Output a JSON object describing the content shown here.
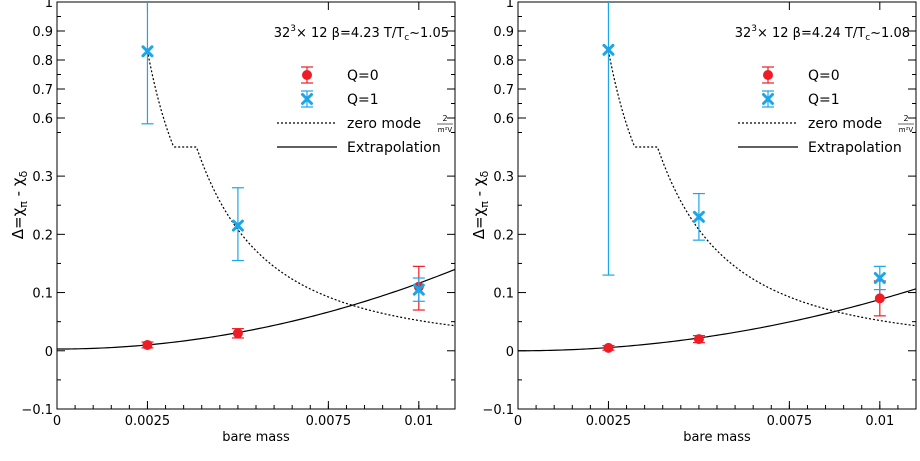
{
  "colors": {
    "q0": "#ee1c24",
    "q1": "#1aa6e8",
    "axis": "#000000"
  },
  "chart_data": [
    {
      "type": "scatter",
      "annotation": {
        "base": "32",
        "sup": "3",
        "rest": "× 12 β=4.23 T/T",
        "sub": "c",
        "tail": "~1.05"
      },
      "xlabel": "bare mass",
      "ylabel": "Δ=χπ - χδ",
      "ylabel_parts": {
        "pre": "Δ=χ",
        "sub1": "π",
        "mid": " - χ",
        "sub2": "δ"
      },
      "xlim": [
        0,
        0.011
      ],
      "ylim": [
        -0.1,
        1.0
      ],
      "y_break": {
        "lower": [
          -0.1,
          0.35
        ],
        "upper": [
          0.5,
          1.0
        ]
      },
      "x_ticks": [
        {
          "value": 0,
          "label": "0"
        },
        {
          "value": 0.0025,
          "label": "0.0025"
        },
        {
          "value": 0.0075,
          "label": "0.0075"
        },
        {
          "value": 0.01,
          "label": "0.01"
        }
      ],
      "y_ticks": [
        {
          "value": -0.1,
          "label": "−0.1"
        },
        {
          "value": 0,
          "label": "0"
        },
        {
          "value": 0.1,
          "label": "0.1"
        },
        {
          "value": 0.2,
          "label": "0.2"
        },
        {
          "value": 0.3,
          "label": "0.3"
        },
        {
          "value": 0.6,
          "label": "0.6"
        },
        {
          "value": 0.7,
          "label": "0.7"
        },
        {
          "value": 0.8,
          "label": "0.8"
        },
        {
          "value": 0.9,
          "label": "0.9"
        },
        {
          "value": 1.0,
          "label": "1"
        }
      ],
      "legend": {
        "position": "top-right",
        "entries": [
          {
            "label": "Q=0",
            "symbol": "dot"
          },
          {
            "label": "Q=1",
            "symbol": "cross"
          },
          {
            "label": "zero mode",
            "frac_num": "2",
            "frac_den": "m²V",
            "symbol": "dotted-line"
          },
          {
            "label": "Extrapolation",
            "symbol": "solid-line"
          }
        ]
      },
      "series": [
        {
          "name": "Q=0",
          "x": [
            0.0025,
            0.005,
            0.01
          ],
          "y": [
            0.01,
            0.03,
            0.11
          ],
          "err_lo": [
            0.005,
            0.008,
            0.04
          ],
          "err_hi": [
            0.005,
            0.008,
            0.035
          ]
        },
        {
          "name": "Q=1",
          "x": [
            0.0025,
            0.005,
            0.01
          ],
          "y": [
            0.83,
            0.215,
            0.105
          ],
          "err_lo": [
            0.25,
            0.06,
            0.02
          ],
          "err_hi": [
            0.25,
            0.065,
            0.02
          ]
        }
      ],
      "zero_mode_coef": 5.2e-06,
      "extrapolation": {
        "a": 0.003,
        "b": 1130
      }
    },
    {
      "type": "scatter",
      "annotation": {
        "base": "32",
        "sup": "3",
        "rest": "× 12 β=4.24 T/T",
        "sub": "c",
        "tail": "~1.08"
      },
      "xlabel": "bare mass",
      "ylabel": "Δ=χπ - χδ",
      "ylabel_parts": {
        "pre": "Δ=χ",
        "sub1": "π",
        "mid": " - χ",
        "sub2": "δ"
      },
      "xlim": [
        0,
        0.011
      ],
      "ylim": [
        -0.1,
        1.0
      ],
      "y_break": {
        "lower": [
          -0.1,
          0.35
        ],
        "upper": [
          0.5,
          1.0
        ]
      },
      "x_ticks": [
        {
          "value": 0,
          "label": "0"
        },
        {
          "value": 0.0025,
          "label": "0.0025"
        },
        {
          "value": 0.0075,
          "label": "0.0075"
        },
        {
          "value": 0.01,
          "label": "0.01"
        }
      ],
      "y_ticks": [
        {
          "value": -0.1,
          "label": "−0.1"
        },
        {
          "value": 0,
          "label": "0"
        },
        {
          "value": 0.1,
          "label": "0.1"
        },
        {
          "value": 0.2,
          "label": "0.2"
        },
        {
          "value": 0.3,
          "label": "0.3"
        },
        {
          "value": 0.6,
          "label": "0.6"
        },
        {
          "value": 0.7,
          "label": "0.7"
        },
        {
          "value": 0.8,
          "label": "0.8"
        },
        {
          "value": 0.9,
          "label": "0.9"
        },
        {
          "value": 1.0,
          "label": "1"
        }
      ],
      "legend": {
        "position": "top-right",
        "entries": [
          {
            "label": "Q=0",
            "symbol": "dot"
          },
          {
            "label": "Q=1",
            "symbol": "cross"
          },
          {
            "label": "zero mode",
            "frac_num": "2",
            "frac_den": "m²V",
            "symbol": "dotted-line"
          },
          {
            "label": "Extrapolation",
            "symbol": "solid-line"
          }
        ]
      },
      "series": [
        {
          "name": "Q=0",
          "x": [
            0.0025,
            0.005,
            0.01
          ],
          "y": [
            0.005,
            0.02,
            0.09
          ],
          "err_lo": [
            0.004,
            0.006,
            0.03
          ],
          "err_hi": [
            0.004,
            0.006,
            0.03
          ]
        },
        {
          "name": "Q=1",
          "x": [
            0.0025,
            0.005,
            0.01
          ],
          "y": [
            0.835,
            0.23,
            0.125
          ],
          "err_lo": [
            0.705,
            0.04,
            0.02
          ],
          "err_hi": [
            0.3,
            0.04,
            0.02
          ]
        }
      ],
      "zero_mode_coef": 5.2e-06,
      "extrapolation": {
        "a": 0.0,
        "b": 880
      }
    }
  ]
}
